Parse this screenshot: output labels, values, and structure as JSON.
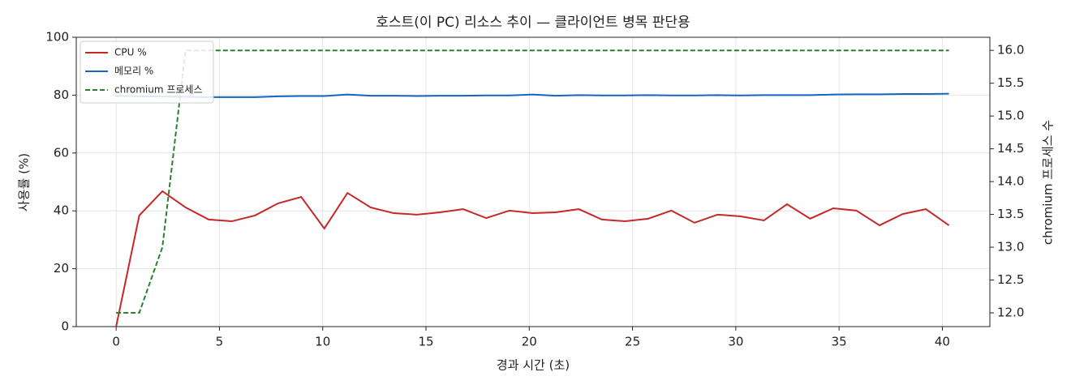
{
  "chart_data": {
    "type": "line",
    "title": "호스트(이 PC) 리소스 추이 — 클라이언트 병목 판단용",
    "x_label": "경과 시간 (초)",
    "y_label": "사용률 (%)",
    "y2_label": "chromium 프로세스 수",
    "x": [
      0,
      1.12,
      2.24,
      3.36,
      4.48,
      5.6,
      6.72,
      7.84,
      8.96,
      10.08,
      11.2,
      12.32,
      13.44,
      14.56,
      15.68,
      16.8,
      17.92,
      19.04,
      20.16,
      21.28,
      22.4,
      23.52,
      24.64,
      25.76,
      26.88,
      28.0,
      29.12,
      30.24,
      31.36,
      32.48,
      33.6,
      34.72,
      35.84,
      36.96,
      38.08,
      39.2,
      40.32
    ],
    "series": [
      {
        "name": "CPU %",
        "color": "#c62828",
        "values": [
          0,
          38.4,
          46.8,
          41.2,
          37.0,
          36.4,
          38.4,
          42.6,
          44.8,
          33.9,
          46.2,
          41.2,
          39.2,
          38.7,
          39.5,
          40.6,
          37.5,
          40.1,
          39.2,
          39.5,
          40.6,
          37.0,
          36.4,
          37.3,
          40.1,
          35.9,
          38.7,
          38.1,
          36.7,
          42.3,
          37.3,
          40.9,
          40.1,
          35.0,
          38.9,
          40.6,
          35.0
        ]
      },
      {
        "name": "메모리 %",
        "color": "#1565c0",
        "values": [
          79.8,
          79.6,
          79.5,
          79.4,
          79.3,
          79.3,
          79.3,
          79.6,
          79.7,
          79.7,
          80.2,
          79.8,
          79.8,
          79.7,
          79.8,
          79.8,
          79.9,
          79.9,
          80.2,
          79.8,
          80.0,
          79.9,
          79.9,
          80.0,
          79.9,
          79.9,
          80.0,
          79.9,
          80.0,
          80.0,
          80.0,
          80.2,
          80.3,
          80.3,
          80.4,
          80.4,
          80.5
        ]
      },
      {
        "name": "chromium 프로세스",
        "color": "#2e7d32",
        "dashed": true,
        "axis": "y2",
        "values": [
          12,
          12,
          13,
          16,
          16,
          16,
          16,
          16,
          16,
          16,
          16,
          16,
          16,
          16,
          16,
          16,
          16,
          16,
          16,
          16,
          16,
          16,
          16,
          16,
          16,
          16,
          16,
          16,
          16,
          16,
          16,
          16,
          16,
          16,
          16,
          16,
          16
        ]
      }
    ],
    "xlim": [
      -1.93,
      42.3
    ],
    "xticks": [
      0,
      5,
      10,
      15,
      20,
      25,
      30,
      35,
      40
    ],
    "ylim": [
      0,
      100
    ],
    "yticks": [
      0,
      20,
      40,
      60,
      80,
      100
    ],
    "y2lim": [
      11.79,
      16.2
    ],
    "y2ticks": [
      {
        "value": 12,
        "label": "12.0"
      },
      12.5,
      {
        "value": 13,
        "label": "13.0"
      },
      13.5,
      {
        "value": 14,
        "label": "14.0"
      },
      14.5,
      {
        "value": 15,
        "label": "15.0"
      },
      15.5,
      {
        "value": 16,
        "label": "16.0"
      }
    ],
    "grid": true,
    "legend": "upper-left"
  }
}
